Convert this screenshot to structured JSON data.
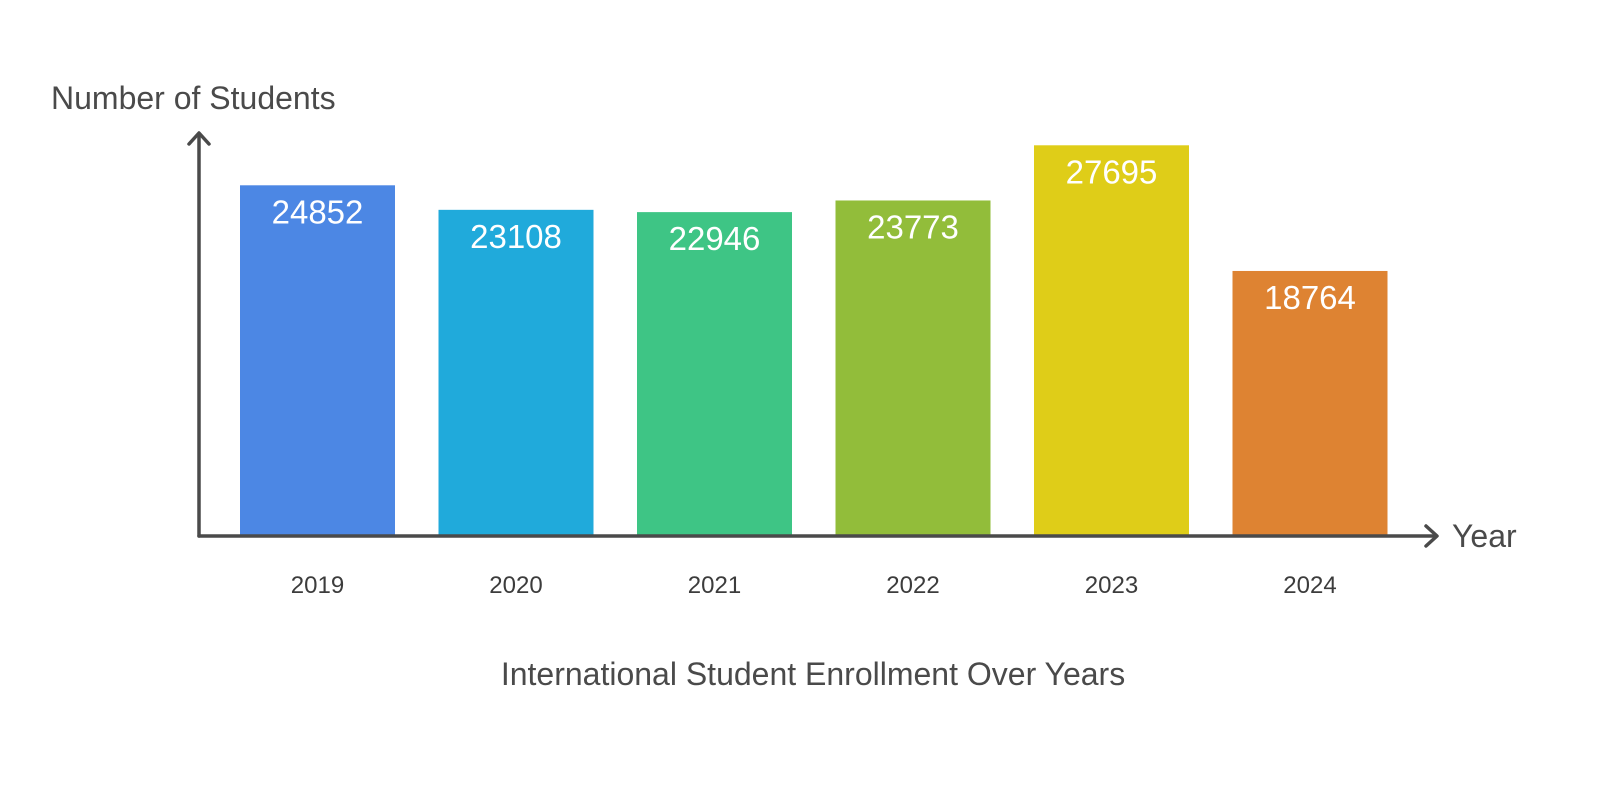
{
  "chart_data": {
    "type": "bar",
    "title": "International Student Enrollment Over Years",
    "xlabel": "Year",
    "ylabel": "Number of Students",
    "categories": [
      "2019",
      "2020",
      "2021",
      "2022",
      "2023",
      "2024"
    ],
    "values": [
      24852,
      23108,
      22946,
      23773,
      27695,
      18764
    ],
    "colors": [
      "#4c87e4",
      "#20aadb",
      "#3ec585",
      "#92bd3a",
      "#dfcd18",
      "#de8332"
    ],
    "ylim": [
      0,
      28000
    ],
    "grid": false,
    "legend": "none"
  }
}
